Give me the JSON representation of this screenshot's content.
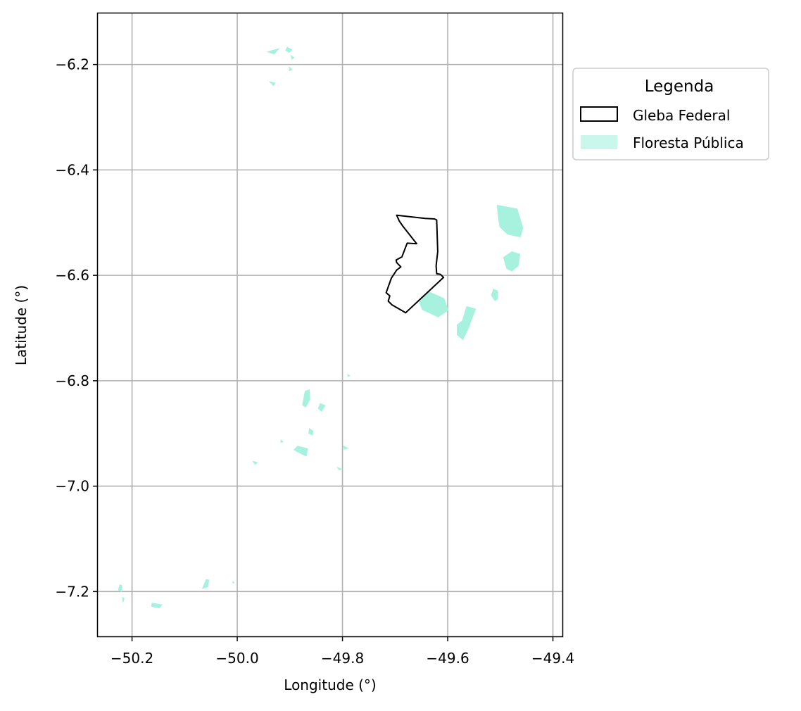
{
  "chart_data": {
    "type": "map",
    "xlabel": "Longitude (°)",
    "ylabel": "Latitude (°)",
    "xlim": [
      -50.265,
      -49.382
    ],
    "ylim": [
      -7.285,
      -6.103
    ],
    "xticks": [
      -50.2,
      -50.0,
      -49.8,
      -49.6,
      -49.4
    ],
    "yticks": [
      -6.2,
      -6.4,
      -6.6,
      -6.8,
      -7.0,
      -7.2
    ],
    "xtick_labels": [
      "−50.2",
      "−50.0",
      "−49.8",
      "−49.6",
      "−49.4"
    ],
    "ytick_labels": [
      "−6.2",
      "−6.4",
      "−6.6",
      "−6.8",
      "−7.0",
      "−7.2"
    ],
    "grid": true,
    "legend": {
      "title": "Legenda",
      "placement": "outside right, upper",
      "entries": [
        {
          "label": "Gleba Federal",
          "style": "outline",
          "color": "#000000"
        },
        {
          "label": "Floresta Pública",
          "style": "fill",
          "color": "#a6f2de"
        }
      ]
    },
    "gleba_federal": [
      [
        -49.697,
        -6.486
      ],
      [
        -49.643,
        -6.492
      ],
      [
        -49.625,
        -6.493
      ],
      [
        -49.621,
        -6.495
      ],
      [
        -49.619,
        -6.555
      ],
      [
        -49.622,
        -6.582
      ],
      [
        -49.621,
        -6.597
      ],
      [
        -49.614,
        -6.598
      ],
      [
        -49.608,
        -6.604
      ],
      [
        -49.68,
        -6.671
      ],
      [
        -49.706,
        -6.656
      ],
      [
        -49.713,
        -6.649
      ],
      [
        -49.71,
        -6.639
      ],
      [
        -49.717,
        -6.633
      ],
      [
        -49.707,
        -6.605
      ],
      [
        -49.697,
        -6.59
      ],
      [
        -49.689,
        -6.584
      ],
      [
        -49.697,
        -6.576
      ],
      [
        -49.698,
        -6.571
      ],
      [
        -49.687,
        -6.565
      ],
      [
        -49.677,
        -6.539
      ],
      [
        -49.659,
        -6.54
      ],
      [
        -49.685,
        -6.507
      ],
      [
        -49.692,
        -6.497
      ],
      [
        -49.697,
        -6.486
      ]
    ],
    "floresta_publica": [
      [
        [
          -49.506,
          -6.467
        ],
        [
          -49.468,
          -6.474
        ],
        [
          -49.457,
          -6.51
        ],
        [
          -49.462,
          -6.527
        ],
        [
          -49.486,
          -6.522
        ],
        [
          -49.501,
          -6.508
        ],
        [
          -49.504,
          -6.487
        ]
      ],
      [
        [
          -49.478,
          -6.555
        ],
        [
          -49.463,
          -6.56
        ],
        [
          -49.466,
          -6.582
        ],
        [
          -49.478,
          -6.592
        ],
        [
          -49.488,
          -6.587
        ],
        [
          -49.494,
          -6.566
        ]
      ],
      [
        [
          -49.636,
          -6.631
        ],
        [
          -49.607,
          -6.644
        ],
        [
          -49.599,
          -6.666
        ],
        [
          -49.618,
          -6.679
        ],
        [
          -49.648,
          -6.665
        ],
        [
          -49.654,
          -6.651
        ]
      ],
      [
        [
          -49.564,
          -6.659
        ],
        [
          -49.547,
          -6.664
        ],
        [
          -49.562,
          -6.703
        ],
        [
          -49.571,
          -6.722
        ],
        [
          -49.582,
          -6.713
        ],
        [
          -49.582,
          -6.694
        ],
        [
          -49.572,
          -6.686
        ]
      ],
      [
        [
          -49.513,
          -6.626
        ],
        [
          -49.505,
          -6.63
        ],
        [
          -49.505,
          -6.645
        ],
        [
          -49.51,
          -6.648
        ],
        [
          -49.517,
          -6.638
        ]
      ],
      [
        [
          -49.932,
          -6.173
        ],
        [
          -49.921,
          -6.17
        ],
        [
          -49.93,
          -6.18
        ],
        [
          -49.942,
          -6.176
        ]
      ],
      [
        [
          -49.905,
          -6.167
        ],
        [
          -49.896,
          -6.172
        ],
        [
          -49.901,
          -6.177
        ],
        [
          -49.908,
          -6.173
        ]
      ],
      [
        [
          -49.898,
          -6.183
        ],
        [
          -49.892,
          -6.187
        ],
        [
          -49.896,
          -6.19
        ]
      ],
      [
        [
          -49.938,
          -6.233
        ],
        [
          -49.928,
          -6.235
        ],
        [
          -49.931,
          -6.24
        ]
      ],
      [
        [
          -49.901,
          -6.205
        ],
        [
          -49.896,
          -6.21
        ],
        [
          -49.901,
          -6.212
        ]
      ],
      [
        [
          -49.863,
          -6.817
        ],
        [
          -49.871,
          -6.82
        ],
        [
          -49.876,
          -6.846
        ],
        [
          -49.87,
          -6.85
        ],
        [
          -49.862,
          -6.835
        ]
      ],
      [
        [
          -49.842,
          -6.843
        ],
        [
          -49.833,
          -6.847
        ],
        [
          -49.84,
          -6.858
        ],
        [
          -49.846,
          -6.852
        ]
      ],
      [
        [
          -49.863,
          -6.891
        ],
        [
          -49.856,
          -6.895
        ],
        [
          -49.857,
          -6.903
        ],
        [
          -49.864,
          -6.9
        ]
      ],
      [
        [
          -49.885,
          -6.924
        ],
        [
          -49.866,
          -6.929
        ],
        [
          -49.869,
          -6.943
        ],
        [
          -49.885,
          -6.935
        ],
        [
          -49.892,
          -6.931
        ]
      ],
      [
        [
          -49.917,
          -6.912
        ],
        [
          -49.913,
          -6.916
        ],
        [
          -49.917,
          -6.917
        ]
      ],
      [
        [
          -49.97,
          -6.953
        ],
        [
          -49.962,
          -6.955
        ],
        [
          -49.966,
          -6.959
        ]
      ],
      [
        [
          -49.798,
          -6.924
        ],
        [
          -49.79,
          -6.928
        ],
        [
          -49.797,
          -6.93
        ]
      ],
      [
        [
          -49.81,
          -6.964
        ],
        [
          -49.801,
          -6.968
        ],
        [
          -49.806,
          -6.969
        ]
      ],
      [
        [
          -49.79,
          -6.788
        ],
        [
          -49.786,
          -6.79
        ],
        [
          -49.789,
          -6.792
        ]
      ],
      [
        [
          -50.223,
          -7.187
        ],
        [
          -50.219,
          -7.189
        ],
        [
          -50.22,
          -7.2
        ],
        [
          -50.226,
          -7.197
        ]
      ],
      [
        [
          -50.218,
          -7.211
        ],
        [
          -50.215,
          -7.213
        ],
        [
          -50.217,
          -7.22
        ]
      ],
      [
        [
          -50.162,
          -7.222
        ],
        [
          -50.143,
          -7.225
        ],
        [
          -50.148,
          -7.231
        ],
        [
          -50.163,
          -7.228
        ]
      ],
      [
        [
          -50.059,
          -7.177
        ],
        [
          -50.066,
          -7.194
        ],
        [
          -50.056,
          -7.191
        ],
        [
          -50.054,
          -7.178
        ]
      ],
      [
        [
          -50.008,
          -7.181
        ],
        [
          -50.006,
          -7.183
        ],
        [
          -50.008,
          -7.184
        ]
      ]
    ]
  }
}
